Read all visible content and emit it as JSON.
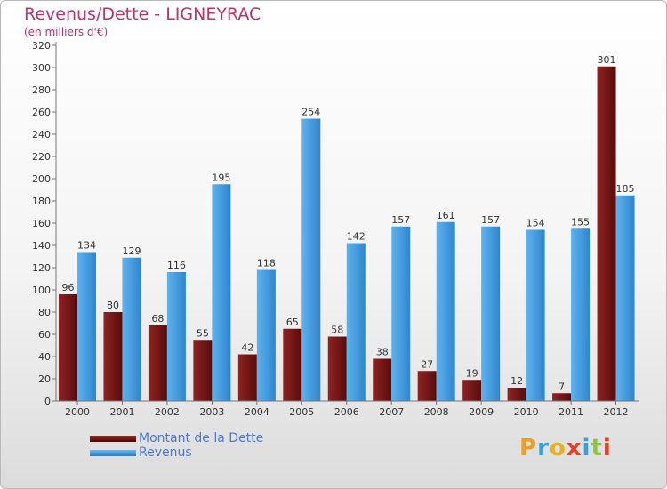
{
  "title": "Revenus/Dette - LIGNEYRAC",
  "subtitle": "(en milliers d'€)",
  "colors": {
    "debt": "#7a1515",
    "revenue": "#3e97da",
    "title": "#c0306e",
    "legend_text": "#4b78d6"
  },
  "chart_data": {
    "type": "bar",
    "title": "Revenus/Dette - LIGNEYRAC",
    "ylabel": "(en milliers d'€)",
    "xlabel": "",
    "categories": [
      "2000",
      "2001",
      "2002",
      "2003",
      "2004",
      "2005",
      "2006",
      "2007",
      "2008",
      "2009",
      "2010",
      "2011",
      "2012"
    ],
    "series": [
      {
        "name": "Montant de la Dette",
        "values": [
          96,
          80,
          68,
          55,
          42,
          65,
          58,
          38,
          27,
          19,
          12,
          7,
          301
        ]
      },
      {
        "name": "Revenus",
        "values": [
          134,
          129,
          116,
          195,
          118,
          254,
          142,
          157,
          161,
          157,
          154,
          155,
          185
        ]
      }
    ],
    "ylim": [
      0,
      320
    ],
    "yticks": [
      0,
      20,
      40,
      60,
      80,
      100,
      120,
      140,
      160,
      180,
      200,
      220,
      240,
      260,
      280,
      300,
      320
    ],
    "grid": false,
    "legend_position": "bottom-left"
  },
  "legend": [
    {
      "label": "Montant de la Dette"
    },
    {
      "label": "Revenus"
    }
  ],
  "logo": {
    "text": "Proxiti",
    "letters": [
      "P",
      "r",
      "o",
      "x",
      "i",
      "t",
      "i"
    ]
  }
}
